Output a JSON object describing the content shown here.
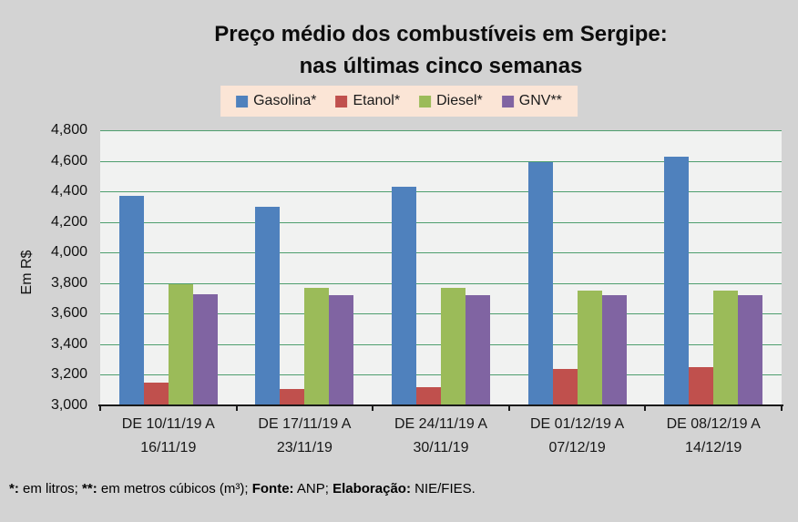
{
  "chart_data": {
    "type": "bar",
    "title": "Preço médio dos combustíveis em Sergipe:",
    "subtitle": "nas últimas cinco semanas",
    "ylabel": "Em R$",
    "ylim": [
      3000,
      4800
    ],
    "ytick_step": 200,
    "ytick_labels": [
      "3,000",
      "3,200",
      "3,400",
      "3,600",
      "3,800",
      "4,000",
      "4,200",
      "4,400",
      "4,600",
      "4,800"
    ],
    "grid": true,
    "legend_position": "top",
    "categories": [
      [
        "DE 10/11/19 A",
        "16/11/19"
      ],
      [
        "DE 17/11/19 A",
        "23/11/19"
      ],
      [
        "DE 24/11/19 A",
        "30/11/19"
      ],
      [
        "DE 01/12/19 A",
        "07/12/19"
      ],
      [
        "DE 08/12/19 A",
        "14/12/19"
      ]
    ],
    "series": [
      {
        "name": "Gasolina*",
        "color": "#4F81BD",
        "values": [
          4370,
          4300,
          4430,
          4590,
          4630
        ]
      },
      {
        "name": "Etanol*",
        "color": "#C0504D",
        "values": [
          3150,
          3110,
          3120,
          3240,
          3250
        ]
      },
      {
        "name": "Diesel*",
        "color": "#9BBB59",
        "values": [
          3790,
          3770,
          3770,
          3750,
          3750
        ]
      },
      {
        "name": "GNV**",
        "color": "#8064A2",
        "values": [
          3730,
          3720,
          3720,
          3720,
          3720
        ]
      }
    ]
  },
  "footer": {
    "segments": [
      {
        "text": "*:",
        "bold": true
      },
      {
        "text": " em litros; ",
        "bold": false
      },
      {
        "text": "**:",
        "bold": true
      },
      {
        "text": " em metros cúbicos (m³); ",
        "bold": false
      },
      {
        "text": "Fonte:",
        "bold": true
      },
      {
        "text": " ANP; ",
        "bold": false
      },
      {
        "text": "Elaboração:",
        "bold": true
      },
      {
        "text": " NIE/FIES.",
        "bold": false
      }
    ]
  },
  "colors": {
    "page_background": "#D3D3D3",
    "plot_background": "#F1F2F1",
    "gridline": "#4E9E6E",
    "axis_line": "#1A1A1A",
    "legend_background": "#FBE5D6",
    "text": "#0D0D0D"
  }
}
